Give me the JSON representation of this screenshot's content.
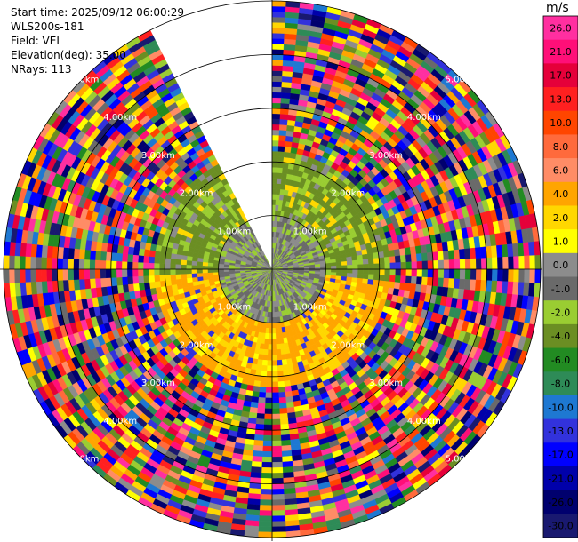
{
  "info": {
    "start_time": "Start time: 2025/09/12 06:00:29",
    "station": "WLS200s-181",
    "field": "Field: VEL",
    "elevation": "Elevation(deg): 35.00",
    "nrays": "NRays: 113"
  },
  "chart_data": {
    "type": "heatmap",
    "projection": "polar-ppi",
    "field": "VEL",
    "unit": "m/s",
    "elevation_deg": 35.0,
    "n_rays": 113,
    "max_range_km": 5.0,
    "range_rings_km": [
      1.0,
      2.0,
      3.0,
      4.0,
      5.0
    ],
    "ring_labels": [
      "1.00km",
      "2.00km",
      "3.00km",
      "4.00km",
      "5.00km"
    ],
    "gap_azimuth_deg": [
      335,
      360
    ],
    "colorbar": {
      "ticks": [
        "26.0",
        "21.0",
        "17.0",
        "13.0",
        "10.0",
        "8.0",
        "6.0",
        "4.0",
        "2.0",
        "1.0",
        "0.0",
        "-1.0",
        "-2.0",
        "-4.0",
        "-6.0",
        "-8.0",
        "-10.0",
        "-13.0",
        "-17.0",
        "-21.0",
        "-26.0",
        "-30.0"
      ],
      "colors": [
        "#ff2fa0",
        "#ff0f78",
        "#e5003a",
        "#ff2020",
        "#ff4500",
        "#ff6a3c",
        "#ff8c66",
        "#ffa500",
        "#ffd700",
        "#ffff00",
        "#8c8c8c",
        "#6a6a6a",
        "#9acd32",
        "#6b8e23",
        "#228b22",
        "#2e8b57",
        "#1e78d2",
        "#3232dc",
        "#0000ff",
        "#0000aa",
        "#00006e",
        "#191970"
      ]
    }
  }
}
